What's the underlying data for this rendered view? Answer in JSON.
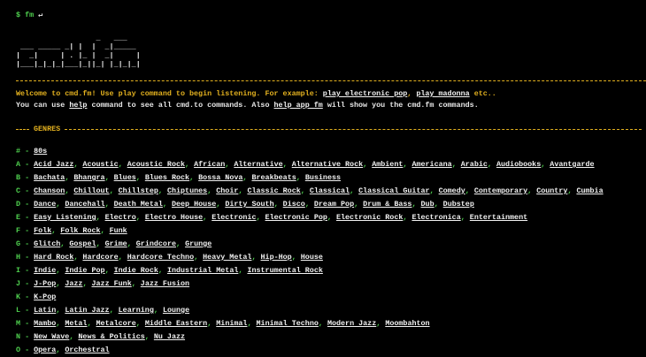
{
  "prompt": {
    "symbol": "$",
    "command": "fm",
    "enter": "↵"
  },
  "ascii_art": [
    "                  _   ___",
    " ___ _____ _| |  |  _|_____",
    "|  _|     | . |_ |  _|     |",
    "|___|_|_|_|___|_||_| |_|_|_|"
  ],
  "intro": [
    [
      {
        "text": "Welcome to cmd.fm! Use play command to begin listening. For example: ",
        "link": false
      },
      {
        "text": "play electronic pop",
        "link": true
      },
      {
        "text": ", ",
        "link": false
      },
      {
        "text": "play madonna",
        "link": true
      },
      {
        "text": " etc..",
        "link": false
      }
    ],
    [
      {
        "text": "You can use ",
        "link": false
      },
      {
        "text": "help",
        "link": true
      },
      {
        "text": " command to see all cmd.to commands. Also ",
        "link": false
      },
      {
        "text": "help app fm",
        "link": true
      },
      {
        "text": " will show you the cmd.fm commands.",
        "link": false
      }
    ]
  ],
  "genres": {
    "title": "GENRES",
    "letter_separator": "-",
    "genre_separator": ",",
    "groups": [
      {
        "letter": "#",
        "genres": [
          "80s"
        ]
      },
      {
        "letter": "A",
        "genres": [
          "Acid Jazz",
          "Acoustic",
          "Acoustic Rock",
          "African",
          "Alternative",
          "Alternative Rock",
          "Ambient",
          "Americana",
          "Arabic",
          "Audiobooks",
          "Avantgarde"
        ]
      },
      {
        "letter": "B",
        "genres": [
          "Bachata",
          "Bhangra",
          "Blues",
          "Blues Rock",
          "Bossa Nova",
          "Breakbeats",
          "Business"
        ]
      },
      {
        "letter": "C",
        "genres": [
          "Chanson",
          "Chillout",
          "Chillstep",
          "Chiptunes",
          "Choir",
          "Classic Rock",
          "Classical",
          "Classical Guitar",
          "Comedy",
          "Contemporary",
          "Country",
          "Cumbia"
        ]
      },
      {
        "letter": "D",
        "genres": [
          "Dance",
          "Dancehall",
          "Death Metal",
          "Deep House",
          "Dirty South",
          "Disco",
          "Dream Pop",
          "Drum & Bass",
          "Dub",
          "Dubstep"
        ]
      },
      {
        "letter": "E",
        "genres": [
          "Easy Listening",
          "Electro",
          "Electro House",
          "Electronic",
          "Electronic Pop",
          "Electronic Rock",
          "Electronica",
          "Entertainment"
        ]
      },
      {
        "letter": "F",
        "genres": [
          "Folk",
          "Folk Rock",
          "Funk"
        ]
      },
      {
        "letter": "G",
        "genres": [
          "Glitch",
          "Gospel",
          "Grime",
          "Grindcore",
          "Grunge"
        ]
      },
      {
        "letter": "H",
        "genres": [
          "Hard Rock",
          "Hardcore",
          "Hardcore Techno",
          "Heavy Metal",
          "Hip-Hop",
          "House"
        ]
      },
      {
        "letter": "I",
        "genres": [
          "Indie",
          "Indie Pop",
          "Indie Rock",
          "Industrial Metal",
          "Instrumental Rock"
        ]
      },
      {
        "letter": "J",
        "genres": [
          "J-Pop",
          "Jazz",
          "Jazz Funk",
          "Jazz Fusion"
        ]
      },
      {
        "letter": "K",
        "genres": [
          "K-Pop"
        ]
      },
      {
        "letter": "L",
        "genres": [
          "Latin",
          "Latin Jazz",
          "Learning",
          "Lounge"
        ]
      },
      {
        "letter": "M",
        "genres": [
          "Mambo",
          "Metal",
          "Metalcore",
          "Middle Eastern",
          "Minimal",
          "Minimal Techno",
          "Modern Jazz",
          "Moombahton"
        ]
      },
      {
        "letter": "N",
        "genres": [
          "New Wave",
          "News & Politics",
          "Nu Jazz"
        ]
      },
      {
        "letter": "O",
        "genres": [
          "Opera",
          "Orchestral"
        ]
      }
    ]
  }
}
